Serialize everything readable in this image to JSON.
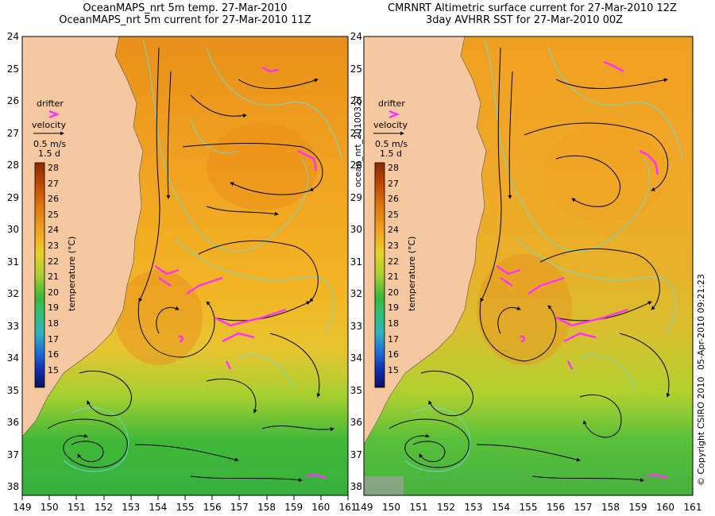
{
  "left_panel": {
    "title_line1": "OceanMAPS_nrt 5m temp. 27-Mar-2010",
    "title_line2": "OceanMAPS_nrt 5m current for 27-Mar-2010 11Z"
  },
  "right_panel": {
    "title_line1": "CMRNRT Altimetric surface current for 27-Mar-2010 12Z",
    "title_line2": "3day AVHRR SST for 27-Mar-2010 00Z"
  },
  "legend": {
    "drifter_label": "drifter",
    "velocity_label": "velocity",
    "scale_speed": "0.5 m/s",
    "scale_time": "1.5 d",
    "colorbar_title": "temperature (°C)",
    "colorbar_ticks": [
      "28",
      "27",
      "26",
      "25",
      "24",
      "23",
      "22",
      "21",
      "20",
      "19",
      "18",
      "17",
      "16",
      "15"
    ]
  },
  "ylabels": [
    "24",
    "25",
    "26",
    "27",
    "28",
    "29",
    "30",
    "31",
    "32",
    "33",
    "34",
    "35",
    "36",
    "37",
    "38"
  ],
  "xlabels": [
    "149",
    "150",
    "151",
    "152",
    "153",
    "154",
    "155",
    "156",
    "157",
    "158",
    "159",
    "160",
    "161"
  ],
  "side": {
    "file_label": "ocean_nrt_20100327",
    "copyright": "© Copyright CSIRO 2010",
    "timestamp": "05-Apr-2010 09:21:23"
  },
  "colors": {
    "land": "#f5c8a0",
    "drifter": "#ff33ff",
    "contour": "#66dddd"
  }
}
